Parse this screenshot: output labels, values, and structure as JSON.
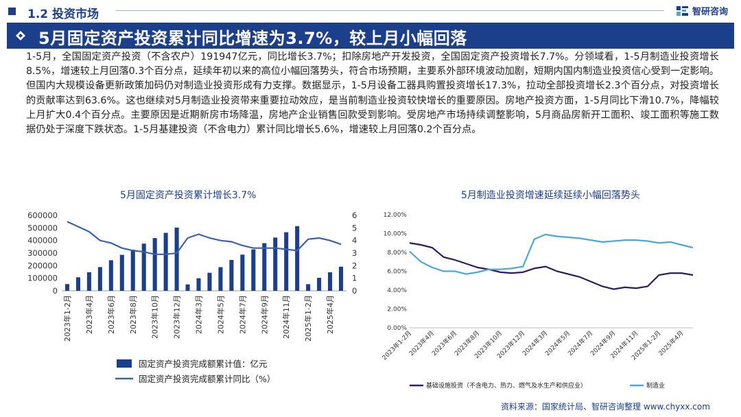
{
  "header": {
    "section_label": "1.2 投资市场",
    "brand": "智研咨询"
  },
  "banner": {
    "title": "5月固定资产投资累计同比增速为3.7%，较上月小幅回落"
  },
  "body_text": "1-5月，全国固定资产投资（不含农户）191947亿元，同比增长3.7%；扣除房地产开发投资，全国固定资产投资增长7.7%。分领域看，1-5月制造业投资增长8.5%，增速较上月回落0.3个百分点，延续年初以来的高位小幅回落势头，符合市场预期，主要系外部环境波动加剧，短期内国内制造业投资信心受到一定影响。但国内大规模设备更新政策加码仍对制造业投资形成有力支撑。数据显示，1-5月设备工器具购置投资增长17.3%，拉动全部投资增长2.3个百分点，对投资增长的贡献率达到63.6%。这也继续对5月制造业投资带来重要拉动效应，是当前制造业投资较快增长的重要原因。房地产投资方面，1-5月同比下滑10.7%，降幅较上月扩大0.4个百分点。主要原因是近期新房市场降温，房地产企业销售回款受到影响。受房地产市场持续调整影响，5月商品房新开工面积、竣工面积等施工数据仍处于深度下跌状态。1-5月基建投资（不含电力）累计同比增长5.6%，增速较上月回落0.2个百分点。",
  "footer": {
    "source": "资料来源：国家统计局、智研咨询整理  www.chyxx.com"
  },
  "colors": {
    "navy": "#1c3f8c",
    "sky": "#4aa8d8",
    "dark_purple": "#2d1b5e"
  },
  "chart_data": [
    {
      "type": "bar+line",
      "title": "5月固定资产投资累计增长3.7%",
      "categories": [
        "2023年1-2月",
        "2023年3月",
        "2023年4月",
        "2023年5月",
        "2023年6月",
        "2023年7月",
        "2023年8月",
        "2023年9月",
        "2023年10月",
        "2023年11月",
        "2023年12月",
        "2024年1-2月",
        "2024年3月",
        "2024年4月",
        "2024年5月",
        "2024年6月",
        "2024年7月",
        "2024年8月",
        "2024年9月",
        "2024年10月",
        "2024年11月",
        "2024年12月",
        "2025年1-2月",
        "2025年3月",
        "2025年4月",
        "2025年5月"
      ],
      "x_tick_labels": [
        "2023年1-2月",
        "",
        "2023年4月",
        "",
        "2023年6月",
        "",
        "2023年8月",
        "",
        "2023年10月",
        "",
        "2023年12月",
        "",
        "2024年3月",
        "",
        "2024年5月",
        "",
        "2024年7月",
        "",
        "2024年9月",
        "",
        "2024年11月",
        "",
        "2025年1-2月",
        "",
        "2025年4月",
        ""
      ],
      "series": [
        {
          "name": "固定资产投资完成额累计值：亿元",
          "type": "bar",
          "axis": "left",
          "values": [
            53577,
            107282,
            147482,
            188815,
            243113,
            285898,
            327042,
            375035,
            419409,
            460814,
            503036,
            50847,
            100042,
            143401,
            188006,
            245391,
            287611,
            329385,
            378978,
            423222,
            465839,
            514374,
            52619,
            103174,
            147024,
            191947
          ]
        },
        {
          "name": "固定资产投资完成额累计同比（%）",
          "type": "line",
          "axis": "right",
          "values": [
            5.5,
            5.1,
            4.7,
            4.0,
            3.8,
            3.4,
            3.2,
            3.1,
            2.9,
            2.9,
            3.0,
            4.2,
            4.5,
            4.2,
            4.0,
            3.9,
            3.6,
            3.4,
            3.4,
            3.4,
            3.3,
            3.2,
            4.1,
            4.2,
            4.0,
            3.7
          ]
        }
      ],
      "ylim_left": [
        0,
        600000
      ],
      "yticks_left": [
        "0",
        "100000",
        "200000",
        "300000",
        "400000",
        "500000",
        "600000"
      ],
      "ylim_right": [
        0,
        6
      ],
      "yticks_right": [
        "0",
        "1",
        "2",
        "3",
        "4",
        "5",
        "6"
      ],
      "legend": [
        "固定资产投资完成额累计值：亿元",
        "固定资产投资完成额累计同比（%）"
      ]
    },
    {
      "type": "line",
      "title": "5月制造业投资增速延续延续小幅回落势头",
      "categories": [
        "2023年1-2月",
        "2023年3月",
        "2023年4月",
        "2023年5月",
        "2023年6月",
        "2023年7月",
        "2023年8月",
        "2023年9月",
        "2023年10月",
        "2023年11月",
        "2023年12月",
        "2024年1-2月",
        "2024年3月",
        "2024年4月",
        "2024年5月",
        "2024年6月",
        "2024年7月",
        "2024年8月",
        "2024年9月",
        "2024年10月",
        "2024年11月",
        "2024年12月",
        "2025年1-2月",
        "2025年3月",
        "2025年4月",
        "2025年5月"
      ],
      "x_tick_labels": [
        "2023年1-2月",
        "",
        "2023年4月",
        "",
        "2023年6月",
        "",
        "2023年8月",
        "",
        "2023年10月",
        "",
        "2023年12月",
        "",
        "2024年3月",
        "",
        "2024年5月",
        "",
        "2024年7月",
        "",
        "2024年9月",
        "",
        "2024年11月",
        "",
        "2025年1-2月",
        "",
        "2025年4月",
        ""
      ],
      "series": [
        {
          "name": "基础设施投资（不含电力、热力、燃气及水生产和供应业）",
          "values": [
            9.0,
            8.8,
            8.5,
            7.5,
            7.2,
            6.8,
            6.4,
            6.2,
            5.9,
            5.8,
            5.9,
            6.3,
            6.5,
            6.0,
            5.7,
            5.4,
            4.9,
            4.4,
            4.1,
            4.3,
            4.2,
            4.4,
            5.6,
            5.8,
            5.8,
            5.6
          ]
        },
        {
          "name": "制造业",
          "values": [
            8.1,
            7.0,
            6.4,
            6.0,
            6.0,
            5.7,
            5.9,
            6.2,
            6.2,
            6.3,
            6.5,
            9.4,
            9.9,
            9.7,
            9.6,
            9.5,
            9.3,
            9.1,
            9.2,
            9.3,
            9.3,
            9.2,
            9.0,
            9.1,
            8.8,
            8.5
          ]
        }
      ],
      "ylim": [
        0,
        12
      ],
      "yticks": [
        "0.00%",
        "2.00%",
        "4.00%",
        "6.00%",
        "8.00%",
        "10.00%",
        "12.00%"
      ],
      "legend": [
        "基础设施投资（不含电力、热力、燃气及水生产和供应业）",
        "制造业"
      ]
    }
  ]
}
